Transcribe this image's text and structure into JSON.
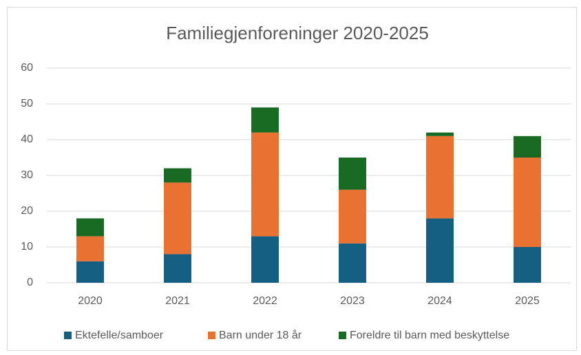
{
  "chart_data": {
    "type": "stacked_bar",
    "title": "Familiegjenforeninger 2020-2025",
    "categories": [
      "2020",
      "2021",
      "2022",
      "2023",
      "2024",
      "2025"
    ],
    "series": [
      {
        "name": "Ektefelle/samboer",
        "color": "#156082",
        "values": [
          6,
          8,
          13,
          11,
          18,
          10
        ]
      },
      {
        "name": "Barn under 18 år",
        "color": "#e97132",
        "values": [
          7,
          20,
          29,
          15,
          23,
          25
        ]
      },
      {
        "name": "Foreldre til barn med beskyttelse",
        "color": "#196b24",
        "values": [
          5,
          4,
          7,
          9,
          1,
          6
        ]
      }
    ],
    "ylim": [
      0,
      60
    ],
    "yticks": [
      0,
      10,
      20,
      30,
      40,
      50,
      60
    ],
    "grid": true,
    "legend": "bottom"
  }
}
